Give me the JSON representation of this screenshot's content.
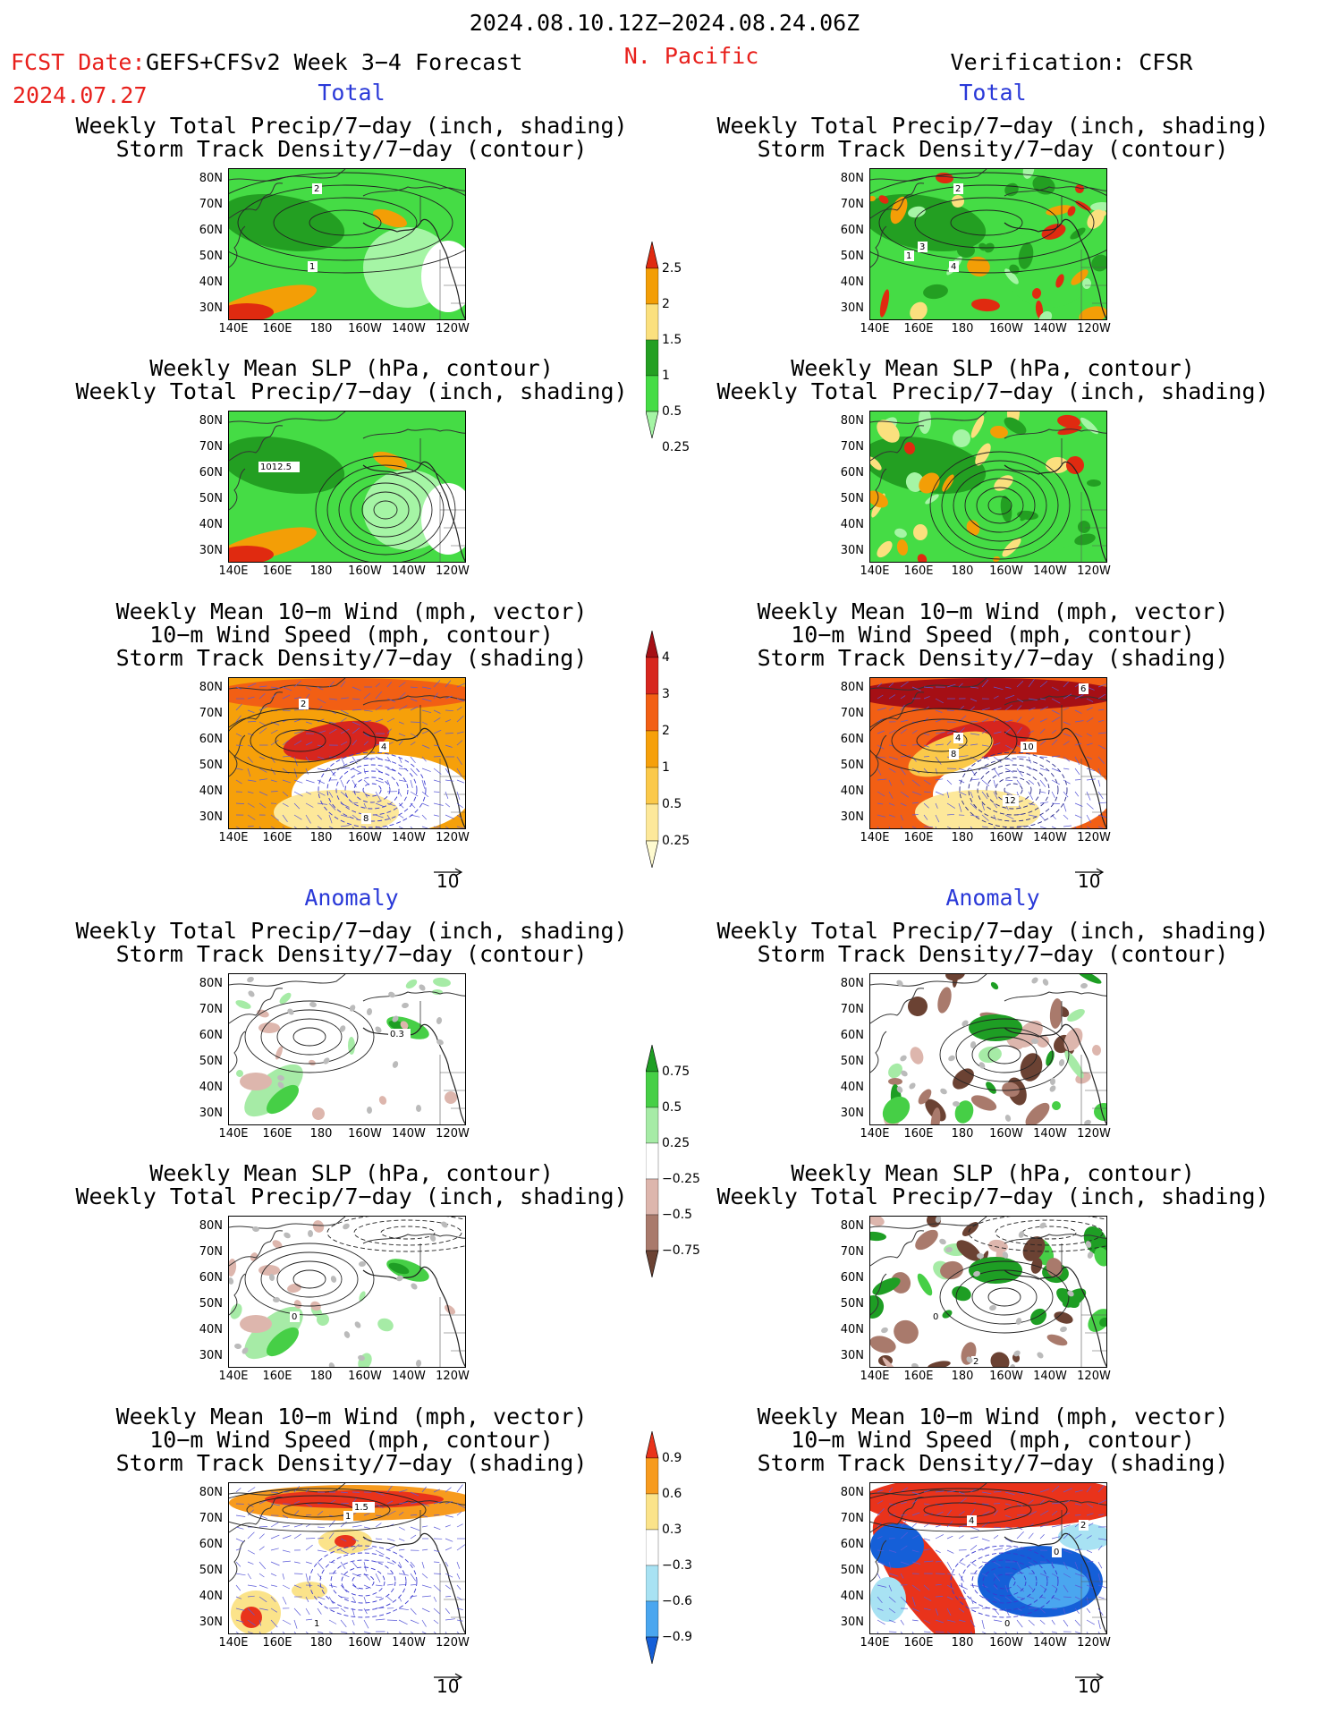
{
  "header": {
    "date_range": "2024.08.10.12Z−2024.08.24.06Z",
    "fcst_label": "FCST Date:",
    "fcst_date": "2024.07.27",
    "model": "GEFS+CFSv2 Week 3−4 Forecast",
    "region": "N. Pacific",
    "verification": "Verification: CFSR"
  },
  "sections": {
    "total": "Total",
    "anomaly": "Anomaly"
  },
  "titles": {
    "precip_storm": [
      "Weekly Total Precip/7−day (inch, shading)",
      "Storm Track Density/7−day (contour)"
    ],
    "slp_precip": [
      "Weekly Mean SLP (hPa, contour)",
      "Weekly Total Precip/7−day (inch, shading)"
    ],
    "wind_storm": [
      "Weekly Mean 10−m Wind (mph, vector)",
      "10−m Wind Speed (mph, contour)",
      "Storm Track Density/7−day (shading)"
    ]
  },
  "axes": {
    "lat_labels": [
      "80N",
      "70N",
      "60N",
      "50N",
      "40N",
      "30N"
    ],
    "lon_labels": [
      "140E",
      "160E",
      "180",
      "160W",
      "140W",
      "120W"
    ]
  },
  "vector_ref": "10",
  "contour_labels": {
    "f_tp1": [
      "2",
      "1"
    ],
    "f_tp2": [
      "1012.5"
    ],
    "f_tp3": [
      "2",
      "4",
      "8"
    ],
    "f_an1": [
      "0.3"
    ],
    "f_an2": [
      "0"
    ],
    "f_an3": [
      "1",
      "1.5",
      "1"
    ],
    "v_tp1": [
      "2",
      "4",
      "3",
      "1"
    ],
    "v_tp3": [
      "6",
      "4",
      "8",
      "10",
      "12"
    ],
    "v_an2": [
      "0",
      "2"
    ],
    "v_an3": [
      "4",
      "2",
      "0",
      "0"
    ]
  },
  "colorbars": {
    "precip_total": {
      "labels": [
        "2.5",
        "2",
        "1.5",
        "1",
        "0.5",
        "0.25"
      ],
      "colors": [
        "#e02a10",
        "#f39e06",
        "#fbe07e",
        "#239f22",
        "#45dc45",
        "#a5f5a5"
      ]
    },
    "storm_total": {
      "labels": [
        "4",
        "3",
        "2",
        "1",
        "0.5",
        "0.25"
      ],
      "colors": [
        "#a50f15",
        "#d7261e",
        "#f25f14",
        "#f6a00a",
        "#fbc94a",
        "#fde89a",
        "#fffbd0"
      ]
    },
    "precip_anom": {
      "labels": [
        "0.75",
        "0.5",
        "0.25",
        "−0.25",
        "−0.5",
        "−0.75"
      ],
      "colors": [
        "#1e9e24",
        "#46cf46",
        "#a6eba6",
        "#ffffff",
        "#ddb6ad",
        "#a97a6c",
        "#6b4233"
      ]
    },
    "storm_anom": {
      "labels": [
        "0.9",
        "0.6",
        "0.3",
        "−0.3",
        "−0.6",
        "−0.9"
      ],
      "colors": [
        "#e9331b",
        "#f79b1e",
        "#fbe38a",
        "#ffffff",
        "#a8e2f3",
        "#4aa6ef",
        "#155fd8"
      ]
    }
  }
}
